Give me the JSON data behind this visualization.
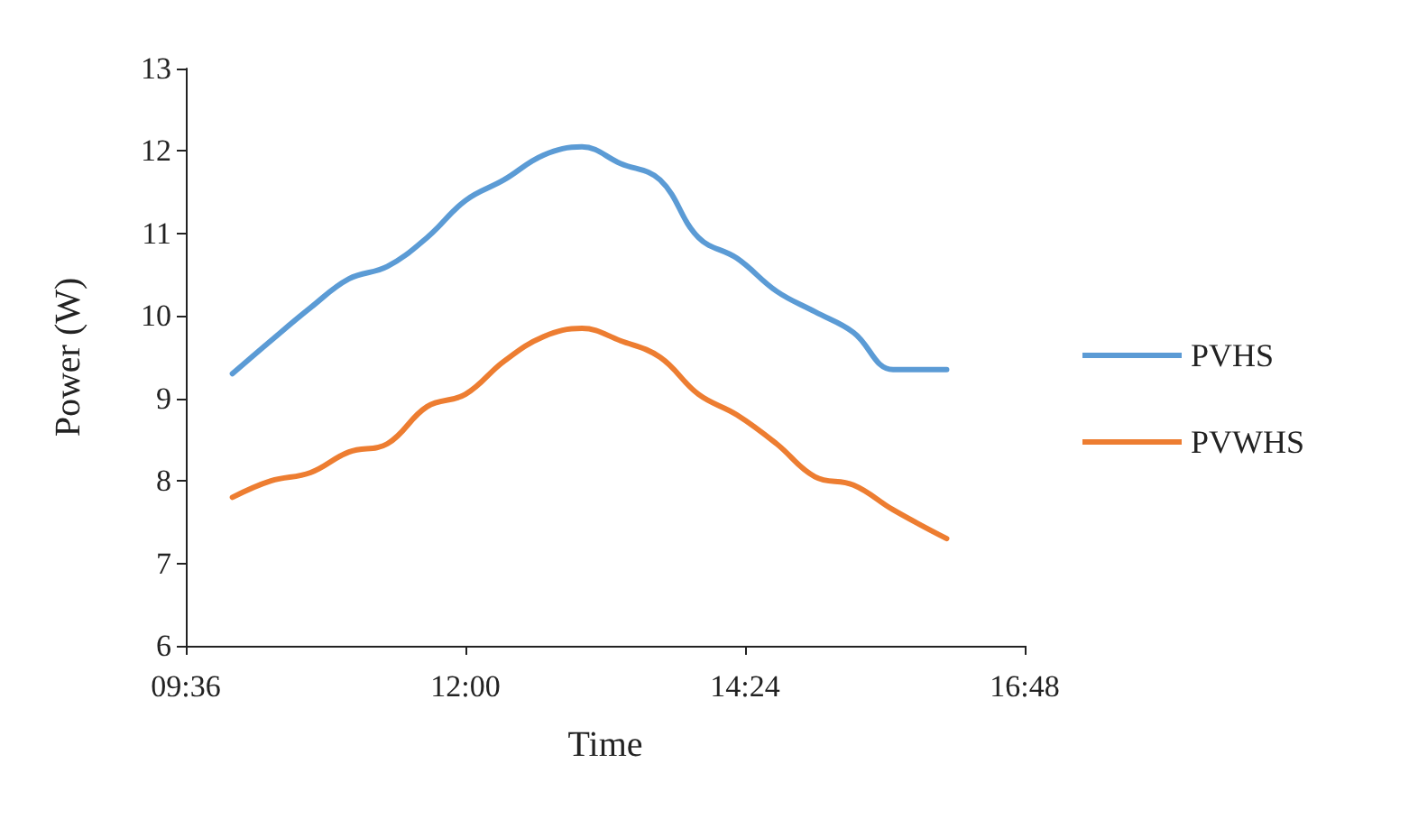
{
  "chart_data": {
    "type": "line",
    "xlabel": "Time",
    "ylabel": "Power (W)",
    "xlim": [
      9.6,
      16.8
    ],
    "xticks": [
      {
        "value": 9.6,
        "label": "09:36"
      },
      {
        "value": 12,
        "label": "12:00"
      },
      {
        "value": 14.4,
        "label": "14:24"
      },
      {
        "value": 16.8,
        "label": "16:48"
      }
    ],
    "ylim": [
      6,
      13
    ],
    "yticks": [
      6,
      7,
      8,
      9,
      10,
      11,
      12,
      13
    ],
    "grid": false,
    "legend": "right",
    "marker": "none",
    "line_style": "solid",
    "series": [
      {
        "name": "PVHS",
        "color": "#5b9bd5",
        "x": [
          10.0,
          10.33,
          10.67,
          11.0,
          11.33,
          11.67,
          12.0,
          12.33,
          12.67,
          13.0,
          13.33,
          13.67,
          14.0,
          14.33,
          14.67,
          15.0,
          15.33,
          15.67,
          16.13
        ],
        "values": [
          9.3,
          9.7,
          10.1,
          10.45,
          10.6,
          10.95,
          11.4,
          11.65,
          11.95,
          12.05,
          11.85,
          11.65,
          10.95,
          10.7,
          10.3,
          10.05,
          9.8,
          9.35,
          9.35
        ]
      },
      {
        "name": "PVWHS",
        "color": "#ed7d31",
        "x": [
          10.0,
          10.33,
          10.67,
          11.0,
          11.33,
          11.67,
          12.0,
          12.33,
          12.67,
          13.0,
          13.33,
          13.67,
          14.0,
          14.33,
          14.67,
          15.0,
          15.33,
          15.67,
          16.13
        ],
        "values": [
          7.8,
          8.0,
          8.1,
          8.35,
          8.45,
          8.9,
          9.05,
          9.45,
          9.75,
          9.85,
          9.7,
          9.5,
          9.05,
          8.8,
          8.45,
          8.05,
          7.95,
          7.65,
          7.3
        ]
      }
    ]
  }
}
